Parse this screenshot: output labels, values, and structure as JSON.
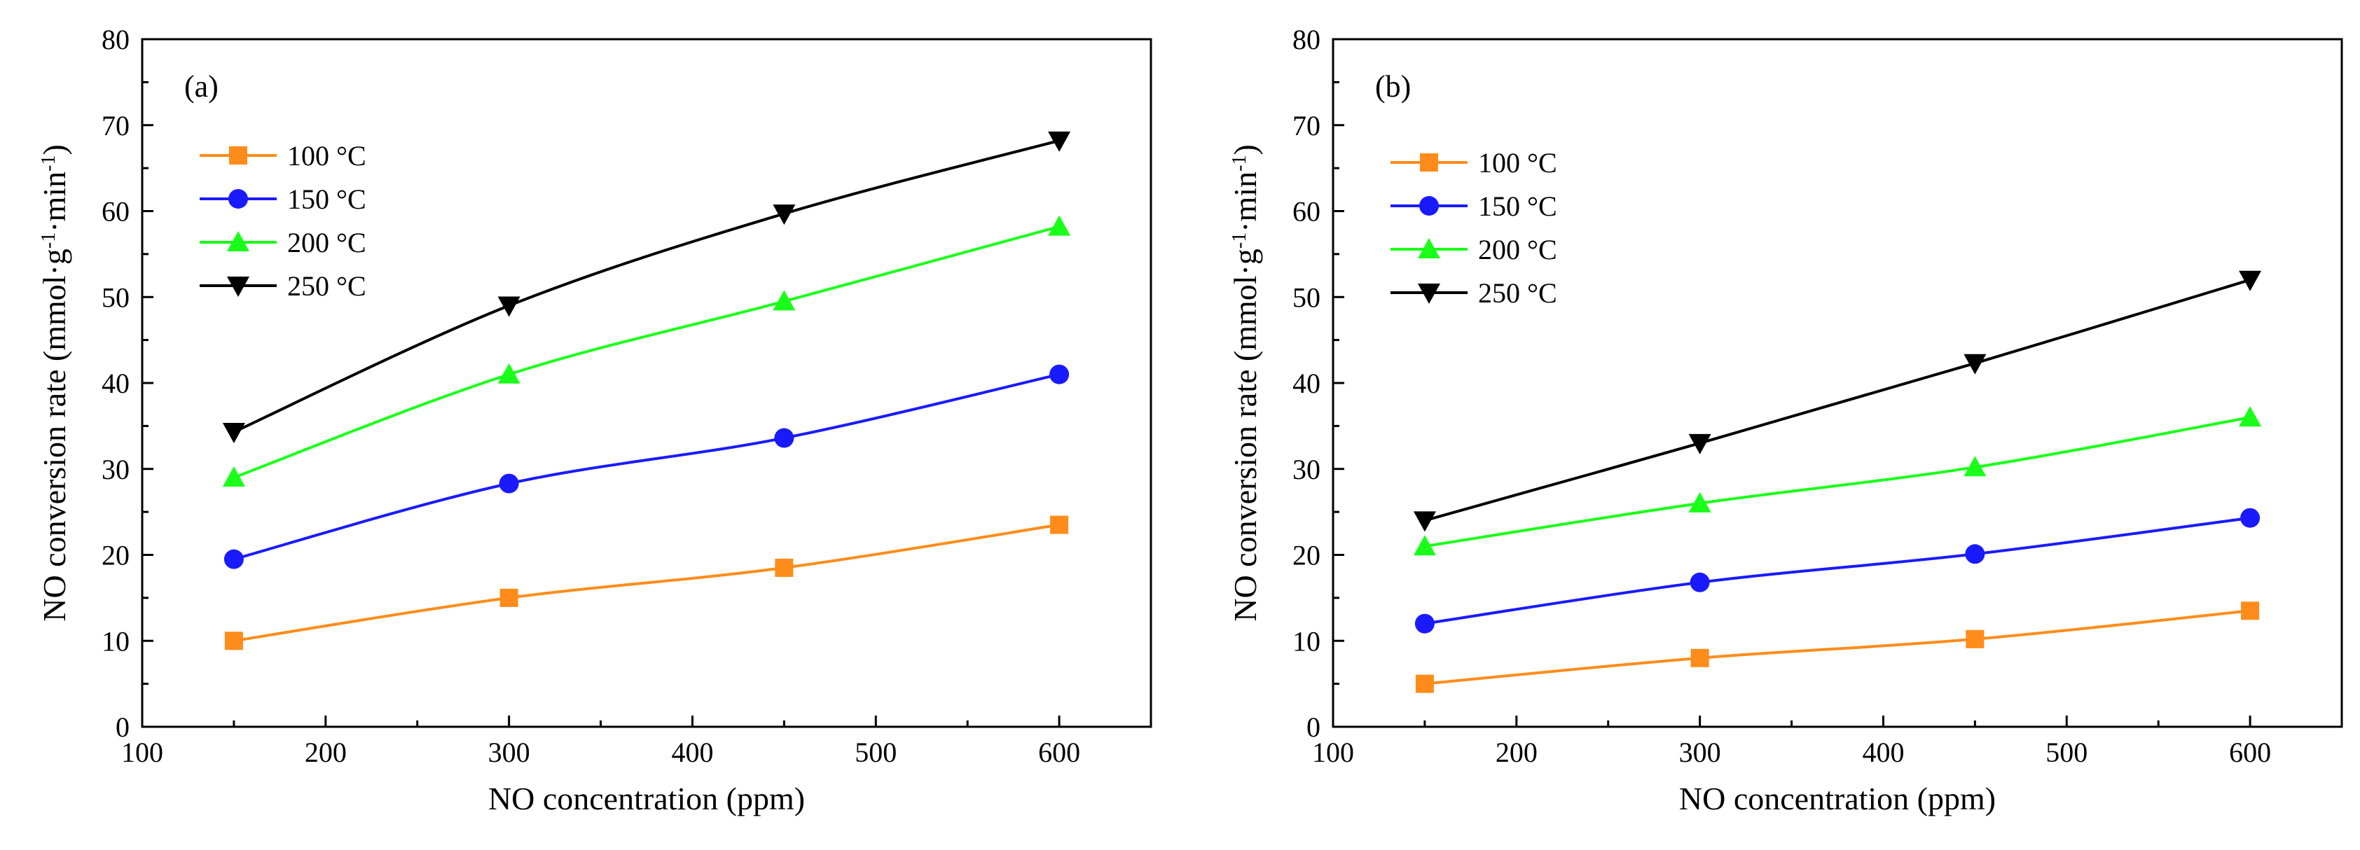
{
  "chart_data": [
    {
      "type": "line",
      "panel_label": "(a)",
      "xlabel": "NO concentration (ppm)",
      "ylabel_main": "NO conversion rate (mmol·g",
      "ylabel_sup1": "-1",
      "ylabel_mid": "·min",
      "ylabel_sup2": "-1",
      "ylabel_end": ")",
      "xlim": [
        100,
        650
      ],
      "ylim": [
        0,
        80
      ],
      "xticks": [
        "100",
        "200",
        "300",
        "400",
        "500",
        "600"
      ],
      "yticks": [
        "0",
        "10",
        "20",
        "30",
        "40",
        "50",
        "60",
        "70",
        "80"
      ],
      "x": [
        150,
        300,
        450,
        600
      ],
      "legend_position": "top-left",
      "series": [
        {
          "name": "100 °C",
          "color": "#ff8c1a",
          "marker": "square",
          "values": [
            10.0,
            15.0,
            18.5,
            23.5
          ]
        },
        {
          "name": "150 °C",
          "color": "#1a1aff",
          "marker": "circle",
          "values": [
            19.5,
            28.3,
            33.6,
            41.0
          ]
        },
        {
          "name": "200 °C",
          "color": "#1aff1a",
          "marker": "triangle-up",
          "values": [
            29.0,
            41.0,
            49.5,
            58.2
          ]
        },
        {
          "name": "250 °C",
          "color": "#000000",
          "marker": "triangle-down",
          "values": [
            34.3,
            49.0,
            59.7,
            68.2
          ]
        }
      ]
    },
    {
      "type": "line",
      "panel_label": "(b)",
      "xlabel": "NO concentration (ppm)",
      "ylabel_main": "NO conversion rate (mmol·g",
      "ylabel_sup1": "-1",
      "ylabel_mid": "·min",
      "ylabel_sup2": "-1",
      "ylabel_end": ")",
      "xlim": [
        100,
        650
      ],
      "ylim": [
        0,
        80
      ],
      "xticks": [
        "100",
        "200",
        "300",
        "400",
        "500",
        "600"
      ],
      "yticks": [
        "0",
        "10",
        "20",
        "30",
        "40",
        "50",
        "60",
        "70",
        "80"
      ],
      "x": [
        150,
        300,
        450,
        600
      ],
      "legend_position": "top-left",
      "series": [
        {
          "name": "100 °C",
          "color": "#ff8c1a",
          "marker": "square",
          "values": [
            5.0,
            8.0,
            10.2,
            13.5
          ]
        },
        {
          "name": "150 °C",
          "color": "#1a1aff",
          "marker": "circle",
          "values": [
            12.0,
            16.8,
            20.1,
            24.3
          ]
        },
        {
          "name": "200 °C",
          "color": "#1aff1a",
          "marker": "triangle-up",
          "values": [
            21.0,
            26.0,
            30.2,
            36.0
          ]
        },
        {
          "name": "250 °C",
          "color": "#000000",
          "marker": "triangle-down",
          "values": [
            24.0,
            33.0,
            42.3,
            52.0
          ]
        }
      ]
    }
  ]
}
